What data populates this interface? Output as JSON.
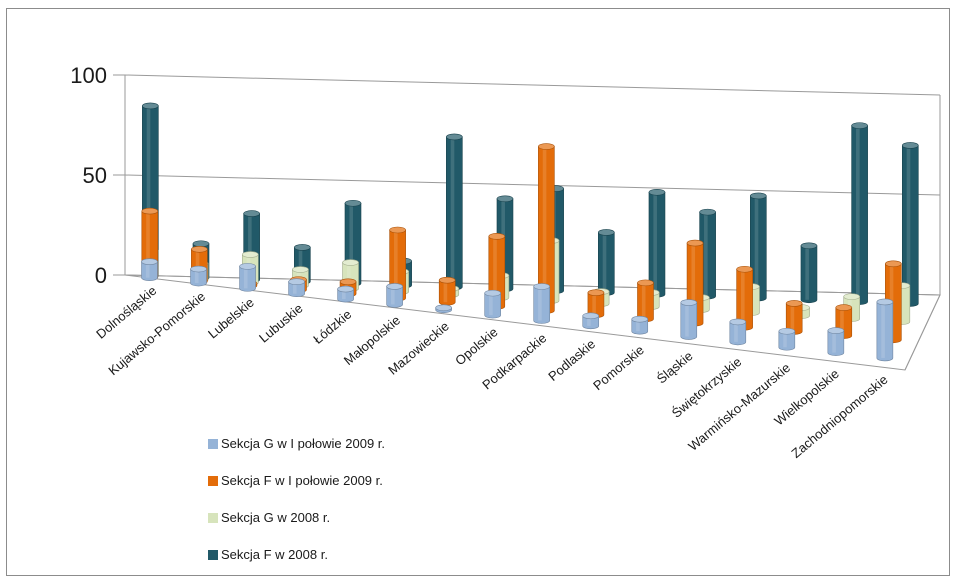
{
  "chart_data": {
    "type": "bar",
    "variant": "3d-cylinder",
    "title": "",
    "xlabel": "",
    "ylabel": "",
    "ylim": [
      0,
      100
    ],
    "yticks": [
      0,
      50,
      100
    ],
    "grid": true,
    "legend_position": "bottom-left",
    "categories": [
      "Dolnośląskie",
      "Kujawsko-Pomorskie",
      "Lubelskie",
      "Lubuskie",
      "Łódzkie",
      "Małopolskie",
      "Mazowieckie",
      "Opolskie",
      "Podkarpackie",
      "Podlaskie",
      "Pomorskie",
      "Śląskie",
      "Świętokrzyskie",
      "Warmińsko-Mazurskie",
      "Wielkopolskie",
      "Zachodniopomorskie"
    ],
    "series": [
      {
        "name": "Sekcja G w I połowie 2009 r.",
        "color": "#95b3d7",
        "values": [
          8,
          7,
          11,
          6,
          5,
          9,
          1,
          11,
          17,
          5,
          6,
          17,
          10,
          8,
          11,
          28
        ]
      },
      {
        "name": "Sekcja F w I połowie 2009 r.",
        "color": "#e36c09",
        "values": [
          33,
          16,
          1,
          5,
          6,
          34,
          11,
          35,
          82,
          11,
          18,
          40,
          29,
          14,
          14,
          38
        ]
      },
      {
        "name": "Sekcja G w 2008 r.",
        "color": "#d7e4bc",
        "values": [
          13,
          8,
          14,
          8,
          13,
          10,
          3,
          11,
          30,
          6,
          7,
          6,
          13,
          4,
          11,
          18
        ]
      },
      {
        "name": "Sekcja F w 2008 r.",
        "color": "#215968",
        "values": [
          85,
          17,
          33,
          17,
          40,
          12,
          75,
          45,
          51,
          30,
          51,
          42,
          51,
          27,
          88,
          79
        ]
      }
    ]
  }
}
